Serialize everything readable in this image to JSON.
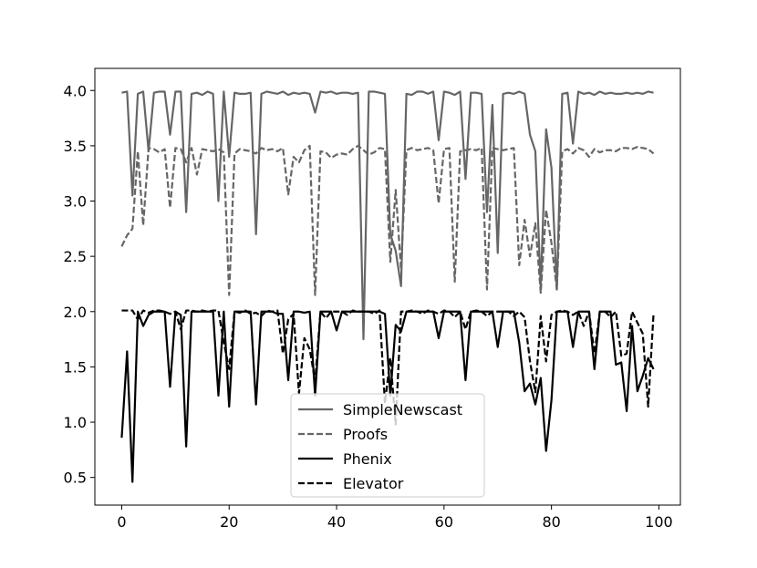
{
  "chart_data": {
    "type": "line",
    "title": "",
    "xlabel": "",
    "ylabel": "",
    "xlim": [
      -5,
      104
    ],
    "ylim": [
      0.25,
      4.2
    ],
    "x_ticks": [
      0,
      20,
      40,
      60,
      80,
      100
    ],
    "y_ticks": [
      0.5,
      1.0,
      1.5,
      2.0,
      2.5,
      3.0,
      3.5,
      4.0
    ],
    "x_tick_labels": [
      "0",
      "20",
      "40",
      "60",
      "80",
      "100"
    ],
    "y_tick_labels": [
      "0.5",
      "1.0",
      "1.5",
      "2.0",
      "2.5",
      "3.0",
      "3.5",
      "4.0"
    ],
    "grid": false,
    "legend_position": "lower-center",
    "x": [
      0,
      1,
      2,
      3,
      4,
      5,
      6,
      7,
      8,
      9,
      10,
      11,
      12,
      13,
      14,
      15,
      16,
      17,
      18,
      19,
      20,
      21,
      22,
      23,
      24,
      25,
      26,
      27,
      28,
      29,
      30,
      31,
      32,
      33,
      34,
      35,
      36,
      37,
      38,
      39,
      40,
      41,
      42,
      43,
      44,
      45,
      46,
      47,
      48,
      49,
      50,
      51,
      52,
      53,
      54,
      55,
      56,
      57,
      58,
      59,
      60,
      61,
      62,
      63,
      64,
      65,
      66,
      67,
      68,
      69,
      70,
      71,
      72,
      73,
      74,
      75,
      76,
      77,
      78,
      79,
      80,
      81,
      82,
      83,
      84,
      85,
      86,
      87,
      88,
      89,
      90,
      91,
      92,
      93,
      94,
      95,
      96,
      97,
      98,
      99
    ],
    "series": [
      {
        "name": "SimpleNewscast",
        "color": "#666666",
        "dash": "solid",
        "values": [
          3.98,
          3.99,
          3.05,
          3.97,
          3.99,
          3.45,
          3.98,
          3.99,
          3.99,
          3.6,
          3.99,
          3.99,
          2.9,
          3.97,
          3.98,
          3.96,
          3.99,
          3.97,
          3.0,
          3.99,
          3.4,
          3.98,
          3.97,
          3.97,
          3.98,
          2.7,
          3.97,
          3.99,
          3.98,
          3.97,
          3.99,
          3.96,
          3.98,
          3.97,
          3.98,
          3.97,
          3.8,
          3.99,
          3.98,
          3.99,
          3.97,
          3.98,
          3.98,
          3.97,
          3.98,
          1.75,
          3.99,
          3.99,
          3.98,
          3.97,
          2.7,
          2.55,
          2.23,
          3.97,
          3.96,
          3.99,
          3.99,
          3.97,
          3.99,
          3.55,
          3.99,
          3.98,
          3.96,
          3.99,
          3.2,
          3.98,
          3.98,
          3.97,
          2.9,
          3.87,
          2.53,
          3.97,
          3.98,
          3.97,
          3.99,
          3.97,
          3.6,
          3.45,
          2.22,
          3.65,
          3.3,
          2.2,
          3.97,
          3.98,
          3.52,
          3.99,
          3.97,
          3.98,
          3.96,
          3.99,
          3.97,
          3.98,
          3.97,
          3.97,
          3.98,
          3.97,
          3.98,
          3.97,
          3.99,
          3.98
        ]
      },
      {
        "name": "Proofs",
        "color": "#666666",
        "dash": "dashed",
        "values": [
          2.59,
          2.69,
          2.75,
          3.45,
          2.78,
          3.48,
          3.47,
          3.44,
          3.47,
          2.94,
          3.48,
          3.47,
          3.35,
          3.48,
          3.24,
          3.47,
          3.46,
          3.45,
          3.47,
          3.44,
          2.15,
          3.43,
          3.47,
          3.46,
          3.45,
          3.43,
          3.48,
          3.46,
          3.47,
          3.45,
          3.48,
          3.06,
          3.4,
          3.35,
          3.46,
          3.5,
          2.15,
          3.45,
          3.44,
          3.39,
          3.42,
          3.43,
          3.42,
          3.47,
          3.5,
          3.46,
          3.42,
          3.44,
          3.48,
          3.47,
          2.45,
          3.1,
          2.38,
          3.46,
          3.48,
          3.46,
          3.47,
          3.48,
          3.46,
          2.98,
          3.47,
          3.48,
          2.27,
          3.45,
          3.46,
          3.47,
          3.46,
          3.48,
          2.2,
          3.48,
          3.47,
          3.46,
          3.47,
          3.48,
          2.42,
          2.83,
          2.5,
          2.8,
          2.17,
          2.92,
          2.62,
          2.2,
          3.45,
          3.47,
          3.43,
          3.48,
          3.46,
          3.4,
          3.47,
          3.44,
          3.46,
          3.46,
          3.45,
          3.48,
          3.48,
          3.47,
          3.49,
          3.48,
          3.47,
          3.43
        ]
      },
      {
        "name": "Phenix",
        "color": "#000000",
        "dash": "solid",
        "values": [
          0.86,
          1.64,
          0.46,
          2.0,
          1.87,
          1.97,
          2.0,
          2.0,
          2.0,
          1.32,
          2.0,
          1.97,
          0.78,
          2.0,
          2.0,
          2.0,
          2.0,
          2.0,
          1.24,
          2.0,
          1.14,
          2.0,
          2.0,
          2.0,
          2.0,
          1.16,
          2.0,
          2.0,
          2.0,
          1.98,
          1.98,
          1.38,
          2.0,
          2.0,
          1.99,
          2.0,
          1.24,
          2.0,
          2.0,
          2.0,
          1.83,
          2.0,
          2.0,
          2.0,
          2.0,
          2.0,
          2.0,
          2.0,
          2.0,
          1.98,
          1.24,
          1.88,
          1.82,
          2.0,
          2.0,
          2.0,
          2.0,
          2.0,
          2.0,
          1.76,
          2.0,
          2.0,
          2.0,
          2.0,
          1.38,
          2.0,
          2.0,
          2.0,
          2.0,
          2.0,
          1.68,
          2.0,
          2.0,
          2.0,
          1.72,
          1.28,
          1.35,
          1.16,
          1.4,
          0.74,
          1.2,
          2.0,
          2.0,
          2.0,
          1.68,
          2.0,
          2.0,
          2.0,
          1.48,
          2.0,
          2.0,
          2.0,
          1.52,
          1.54,
          1.1,
          1.87,
          1.28,
          1.42,
          1.58,
          1.48
        ]
      },
      {
        "name": "Elevator",
        "color": "#000000",
        "dash": "dashed",
        "values": [
          2.01,
          2.01,
          2.01,
          1.93,
          2.01,
          1.99,
          2.01,
          2.01,
          2.0,
          1.98,
          2.0,
          1.84,
          2.01,
          2.01,
          2.0,
          2.01,
          2.0,
          2.01,
          2.01,
          1.72,
          1.48,
          2.0,
          1.99,
          2.01,
          1.98,
          1.99,
          1.96,
          2.01,
          2.0,
          2.01,
          1.62,
          1.93,
          1.98,
          1.26,
          1.76,
          1.66,
          1.37,
          2.0,
          1.94,
          2.0,
          2.0,
          2.0,
          1.97,
          2.01,
          2.0,
          2.0,
          2.0,
          1.98,
          2.01,
          1.17,
          1.58,
          0.98,
          2.0,
          2.0,
          2.01,
          2.0,
          1.98,
          2.01,
          2.0,
          1.98,
          2.01,
          2.0,
          1.95,
          2.0,
          1.84,
          2.0,
          2.01,
          2.0,
          1.96,
          2.0,
          2.0,
          2.0,
          2.0,
          1.96,
          2.0,
          1.95,
          1.55,
          1.27,
          1.96,
          1.55,
          1.97,
          2.0,
          2.01,
          2.0,
          1.97,
          2.0,
          1.87,
          2.0,
          1.62,
          2.0,
          2.0,
          1.95,
          2.0,
          1.6,
          1.62,
          2.0,
          1.9,
          1.8,
          1.14,
          1.98
        ]
      }
    ]
  }
}
